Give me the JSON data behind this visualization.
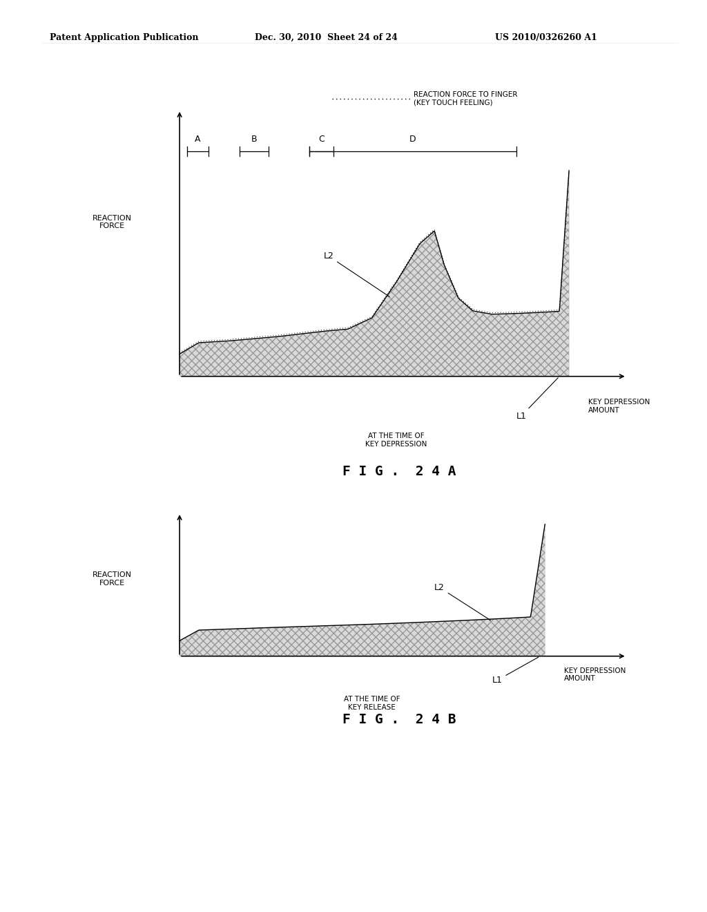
{
  "header_left": "Patent Application Publication",
  "header_mid": "Dec. 30, 2010  Sheet 24 of 24",
  "header_right": "US 2010/0326260 A1",
  "fig_a_title": "F I G .  2 4 A",
  "fig_b_title": "F I G .  2 4 B",
  "reaction_force_label": "REACTION\nFORCE",
  "key_depression_label": "KEY DEPRESSION\nAMOUNT",
  "legend_label": "REACTION FORCE TO FINGER\n(KEY TOUCH FEELING)",
  "at_depression_label": "AT THE TIME OF\nKEY DEPRESSION",
  "at_release_label": "AT THE TIME OF\nKEY RELEASE",
  "L1_label": "L1",
  "L2_label": "L2",
  "background_color": "#ffffff",
  "hatch_pattern": "xxx"
}
